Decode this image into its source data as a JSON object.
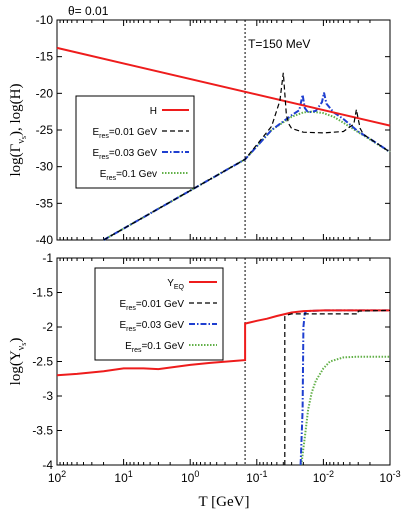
{
  "theta_label": "θ= 0.01",
  "temperature_label": "T=150 MeV",
  "x_axis": {
    "label": "T [GeV]",
    "ticks": [
      {
        "base": "10",
        "exp": "2",
        "value": 100
      },
      {
        "base": "10",
        "exp": "1",
        "value": 10
      },
      {
        "base": "10",
        "exp": "0",
        "value": 1
      },
      {
        "base": "10",
        "exp": "-1",
        "value": 0.1
      },
      {
        "base": "10",
        "exp": "-2",
        "value": 0.01
      },
      {
        "base": "10",
        "exp": "-3",
        "value": 0.001
      }
    ]
  },
  "chart_data": [
    {
      "type": "line",
      "panel": "top",
      "xscale": "log",
      "xlim": [
        100,
        0.001
      ],
      "ylim": [
        -40,
        -10
      ],
      "ylabel": "log(Γ_νs),  log(H)",
      "yticks": [
        "-10",
        "-15",
        "-20",
        "-25",
        "-30",
        "-35",
        "-40"
      ],
      "annotation": {
        "text": "T=150 MeV",
        "x": 0.15
      },
      "legend_position": "center-left",
      "series": [
        {
          "name": "H",
          "color": "#ee1c1c",
          "style": "solid",
          "x": [
            100,
            0.001
          ],
          "y": [
            -13.8,
            -24.4
          ]
        },
        {
          "name": "E_res=0.01 GeV",
          "color": "#000000",
          "style": "dashed",
          "x": [
            20,
            0.15,
            0.06,
            0.045,
            0.04,
            0.038,
            0.036,
            0.033,
            0.03,
            0.02,
            0.01,
            0.005,
            0.0035,
            0.0032,
            0.003,
            0.0028,
            0.0025,
            0.002,
            0.001
          ],
          "y": [
            -40,
            -29,
            -24.5,
            -21,
            -17.2,
            -20,
            -23,
            -24.2,
            -24.8,
            -25.3,
            -25.4,
            -25.2,
            -24.2,
            -22.2,
            -23.5,
            -24.8,
            -25.6,
            -26.2,
            -28
          ]
        },
        {
          "name": "E_res=0.03 GeV",
          "color": "#1f3fd0",
          "style": "dash-dot",
          "x": [
            20,
            0.15,
            0.06,
            0.03,
            0.023,
            0.0205,
            0.019,
            0.017,
            0.013,
            0.0105,
            0.0098,
            0.009,
            0.007,
            0.005,
            0.003,
            0.002,
            0.001
          ],
          "y": [
            -40,
            -29,
            -25,
            -23,
            -22.3,
            -20.2,
            -22,
            -22.6,
            -22.4,
            -21.2,
            -19.9,
            -21.4,
            -22.6,
            -23.5,
            -25.2,
            -26.2,
            -28
          ]
        },
        {
          "name": "E_res=0.1 Gev",
          "color": "#62b048",
          "style": "dotted",
          "x": [
            20,
            0.15,
            0.06,
            0.03,
            0.02,
            0.015,
            0.01,
            0.007,
            0.005,
            0.003,
            0.002,
            0.001
          ],
          "y": [
            -40,
            -29,
            -25,
            -23.2,
            -22.6,
            -22.5,
            -22.7,
            -23.2,
            -24,
            -25.3,
            -26.3,
            -28
          ]
        }
      ],
      "legend": [
        {
          "label": "H"
        },
        {
          "label": "E",
          "sub": "res",
          "rest": "=0.01 GeV"
        },
        {
          "label": "E",
          "sub": "res",
          "rest": "=0.03 GeV"
        },
        {
          "label": "E",
          "sub": "res",
          "rest": "=0.1 Gev"
        }
      ]
    },
    {
      "type": "line",
      "panel": "bottom",
      "xscale": "log",
      "xlim": [
        100,
        0.001
      ],
      "ylim": [
        -4,
        -1
      ],
      "ylabel": "log(Y_νs)",
      "yticks": [
        "-1",
        "-1.5",
        "-2",
        "-2.5",
        "-3",
        "-3.5",
        "-4"
      ],
      "legend_position": "top-left",
      "series": [
        {
          "name": "Y_EQ",
          "color": "#ee1c1c",
          "style": "solid",
          "x": [
            100,
            50,
            20,
            10,
            5,
            3,
            1,
            0.5,
            0.2,
            0.15,
            0.15,
            0.1,
            0.07,
            0.05,
            0.03,
            0.02,
            0.01,
            0.001
          ],
          "y": [
            -2.7,
            -2.68,
            -2.64,
            -2.6,
            -2.6,
            -2.61,
            -2.55,
            -2.52,
            -2.49,
            -2.48,
            -1.95,
            -1.91,
            -1.88,
            -1.84,
            -1.79,
            -1.77,
            -1.76,
            -1.76
          ]
        },
        {
          "name": "E_res=0.01 GeV",
          "color": "#000000",
          "style": "dashed",
          "x": [
            0.038,
            0.038,
            0.036,
            0.033,
            0.03,
            0.003,
            0.003,
            0.001
          ],
          "y": [
            -4,
            -1.85,
            -1.83,
            -1.82,
            -1.81,
            -1.81,
            -1.77,
            -1.76
          ]
        },
        {
          "name": "E_res=0.03 GeV",
          "color": "#1f3fd0",
          "style": "dash-dot",
          "x": [
            0.022,
            0.0205,
            0.02,
            0.019,
            0.018,
            0.01,
            0.001
          ],
          "y": [
            -4,
            -3.2,
            -2.0,
            -1.8,
            -1.77,
            -1.76,
            -1.76
          ]
        },
        {
          "name": "E_res=0.1 Gev",
          "color": "#62b048",
          "style": "dotted",
          "x": [
            0.0215,
            0.019,
            0.017,
            0.015,
            0.013,
            0.01,
            0.008,
            0.005,
            0.003,
            0.001
          ],
          "y": [
            -4,
            -3.6,
            -3.2,
            -2.95,
            -2.78,
            -2.6,
            -2.5,
            -2.44,
            -2.43,
            -2.43
          ]
        }
      ],
      "legend": [
        {
          "label": "Y",
          "sub": "EQ",
          "rest": ""
        },
        {
          "label": "E",
          "sub": "res",
          "rest": "=0.01 GeV"
        },
        {
          "label": "E",
          "sub": "res",
          "rest": "=0.03 GeV"
        },
        {
          "label": "E",
          "sub": "res",
          "rest": "=0.1 GeV"
        }
      ]
    }
  ]
}
